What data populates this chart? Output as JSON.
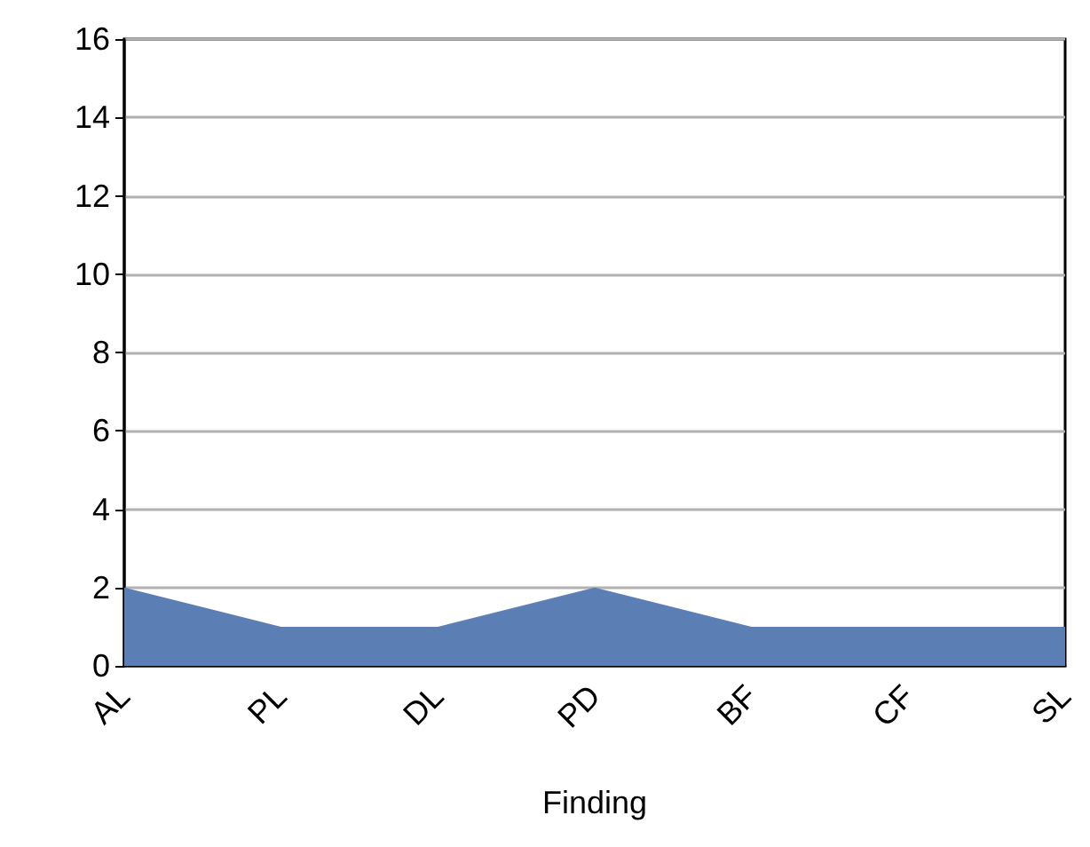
{
  "chart_data": {
    "type": "area",
    "xlabel": "Finding",
    "categories": [
      "AL",
      "PL",
      "DL",
      "PD",
      "BF",
      "CF",
      "SL"
    ],
    "series": [
      {
        "color": "#5b7fb5",
        "values": [
          2,
          1,
          1,
          2,
          1,
          1,
          1
        ]
      }
    ],
    "ylim": [
      0,
      16
    ],
    "yticks": [
      0,
      2,
      4,
      6,
      8,
      10,
      12,
      14,
      16
    ],
    "grid": "y"
  }
}
